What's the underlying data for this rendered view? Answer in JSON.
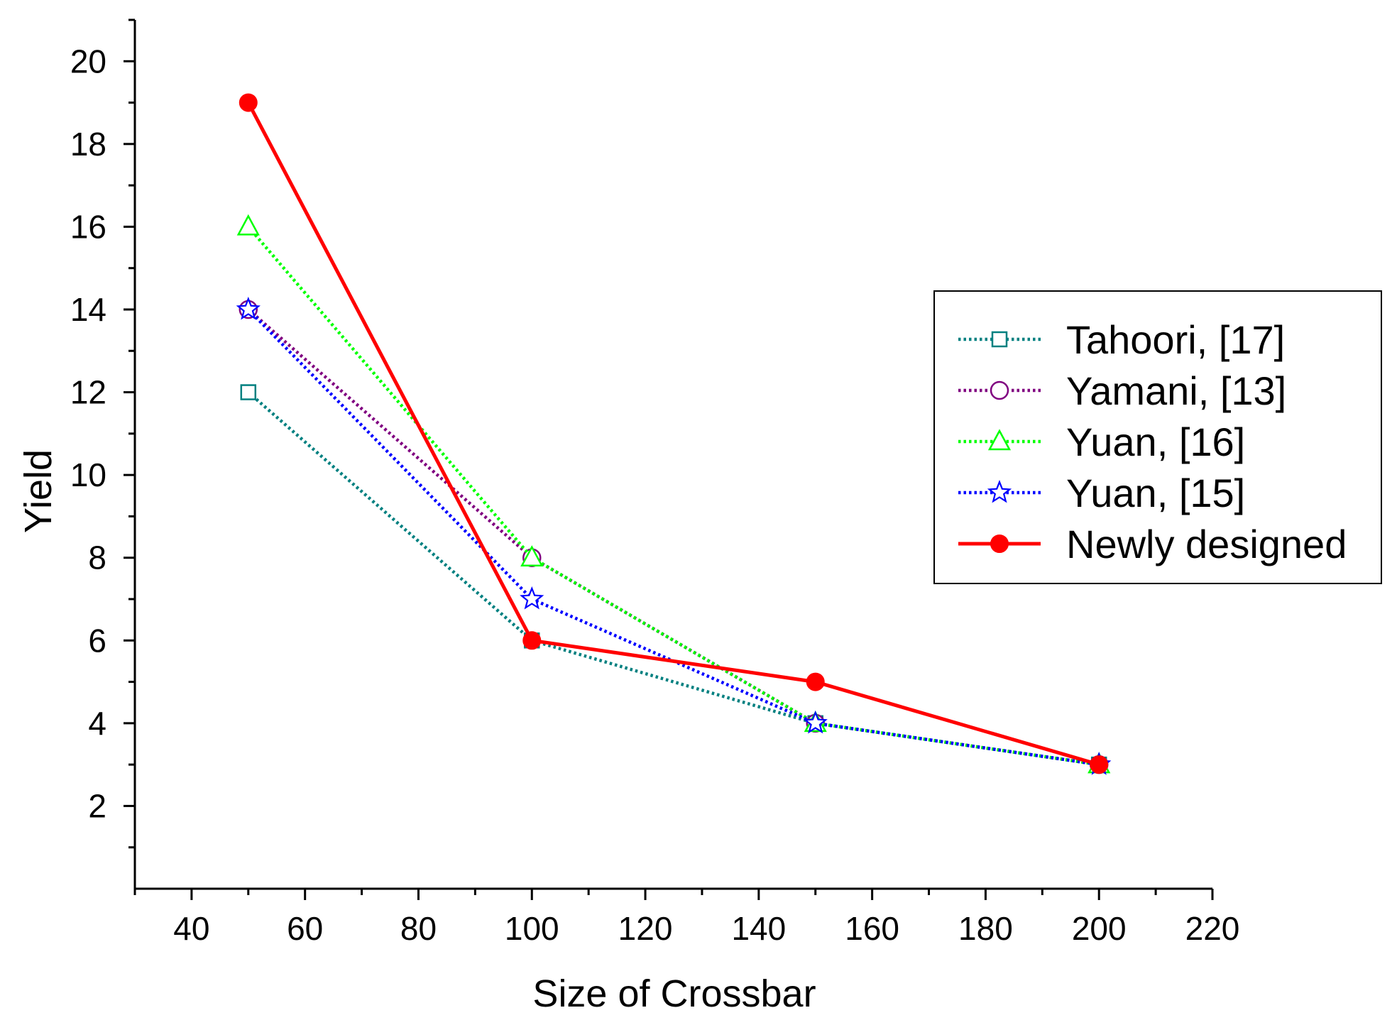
{
  "chart_data": {
    "type": "line",
    "title": "",
    "xlabel": "Size of Crossbar",
    "ylabel": "Yield",
    "xlim": [
      30,
      220
    ],
    "ylim": [
      0,
      21
    ],
    "x_ticks": [
      40,
      60,
      80,
      100,
      120,
      140,
      160,
      180,
      200,
      220
    ],
    "y_ticks": [
      2,
      4,
      6,
      8,
      10,
      12,
      14,
      16,
      18,
      20
    ],
    "grid": false,
    "legend_position": "right",
    "x": [
      50,
      100,
      150,
      200
    ],
    "series": [
      {
        "name": "Tahoori, [17]",
        "values": [
          12,
          6,
          4,
          3
        ],
        "color": "#008080",
        "marker": "square",
        "line_style": "dotted"
      },
      {
        "name": "Yamani, [13]",
        "values": [
          14,
          8,
          4,
          3
        ],
        "color": "#800080",
        "marker": "circle",
        "line_style": "dotted"
      },
      {
        "name": "Yuan, [16]",
        "values": [
          16,
          8,
          4,
          3
        ],
        "color": "#00ff00",
        "marker": "triangle",
        "line_style": "dotted"
      },
      {
        "name": "Yuan, [15]",
        "values": [
          14,
          7,
          4,
          3
        ],
        "color": "#0000ff",
        "marker": "star",
        "line_style": "dotted"
      },
      {
        "name": "Newly designed",
        "values": [
          19,
          6,
          5,
          3
        ],
        "color": "#ff0000",
        "marker": "filled-circle",
        "line_style": "solid"
      }
    ]
  }
}
